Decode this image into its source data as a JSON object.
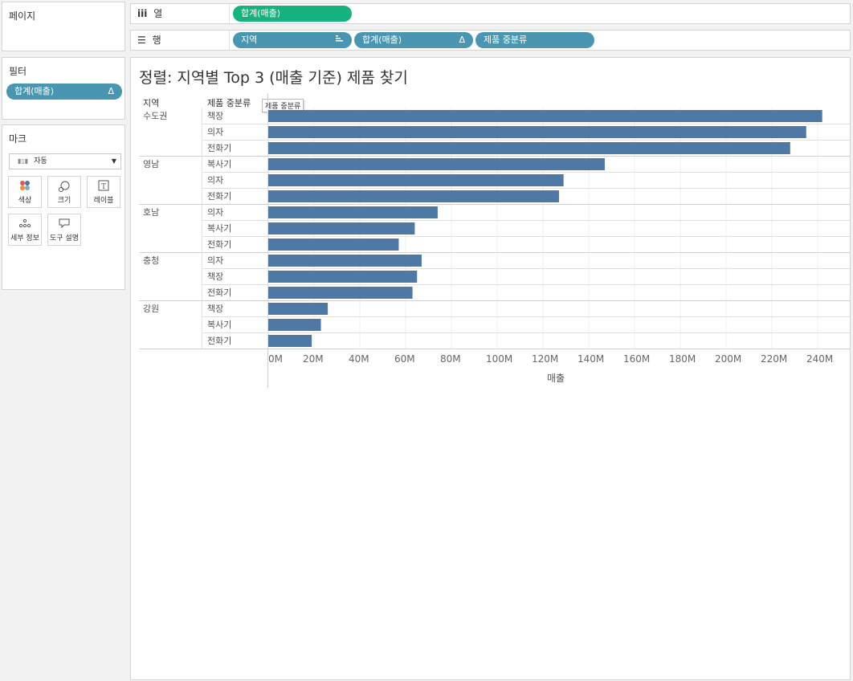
{
  "pages": {
    "title": "페이지"
  },
  "filters": {
    "title": "필터",
    "pills": [
      {
        "label": "합계(매출)",
        "icon": "Δ"
      }
    ]
  },
  "marks": {
    "title": "마크",
    "dropdown": "자동",
    "buttons": [
      {
        "label": "색상",
        "icon": "color-icon"
      },
      {
        "label": "크기",
        "icon": "size-icon"
      },
      {
        "label": "레이블",
        "icon": "label-icon"
      },
      {
        "label": "세부 정보",
        "icon": "detail-icon"
      },
      {
        "label": "도구 설명",
        "icon": "tooltip-icon"
      }
    ]
  },
  "columns_shelf": {
    "label": "열",
    "pills": [
      {
        "label": "합계(매출)"
      }
    ]
  },
  "rows_shelf": {
    "label": "행",
    "pills": [
      {
        "label": "지역",
        "icon": "sort-icon"
      },
      {
        "label": "합계(매출)",
        "icon": "Δ"
      },
      {
        "label": "제품 중분류"
      }
    ]
  },
  "view": {
    "title": "정렬: 지역별 Top 3 (매출 기준) 제품 찾기",
    "col_header_region": "지역",
    "col_header_category": "제품 중분류",
    "tooltip": "제품 중분류"
  },
  "colors": {
    "bar": "#4e79a7",
    "pill_blue": "#4996b2",
    "pill_green": "#15b17f"
  },
  "chart_data": {
    "type": "bar",
    "orientation": "horizontal",
    "xlabel": "매출",
    "xlim": [
      0,
      256
    ],
    "xunit": "M",
    "ticks": [
      0,
      20,
      40,
      60,
      80,
      100,
      120,
      140,
      160,
      180,
      200,
      220,
      240
    ],
    "tick_labels": [
      "0M",
      "20M",
      "40M",
      "60M",
      "80M",
      "100M",
      "120M",
      "140M",
      "160M",
      "180M",
      "200M",
      "220M",
      "240M"
    ],
    "groups": [
      {
        "region": "수도권",
        "items": [
          {
            "category": "책장",
            "value": 242
          },
          {
            "category": "의자",
            "value": 235
          },
          {
            "category": "전화기",
            "value": 228
          }
        ]
      },
      {
        "region": "영남",
        "items": [
          {
            "category": "복사기",
            "value": 147
          },
          {
            "category": "의자",
            "value": 129
          },
          {
            "category": "전화기",
            "value": 127
          }
        ]
      },
      {
        "region": "호남",
        "items": [
          {
            "category": "의자",
            "value": 74
          },
          {
            "category": "복사기",
            "value": 64
          },
          {
            "category": "전화기",
            "value": 57
          }
        ]
      },
      {
        "region": "충청",
        "items": [
          {
            "category": "의자",
            "value": 67
          },
          {
            "category": "책장",
            "value": 65
          },
          {
            "category": "전화기",
            "value": 63
          }
        ]
      },
      {
        "region": "강원",
        "items": [
          {
            "category": "책장",
            "value": 26
          },
          {
            "category": "복사기",
            "value": 23
          },
          {
            "category": "전화기",
            "value": 19
          }
        ]
      }
    ]
  }
}
